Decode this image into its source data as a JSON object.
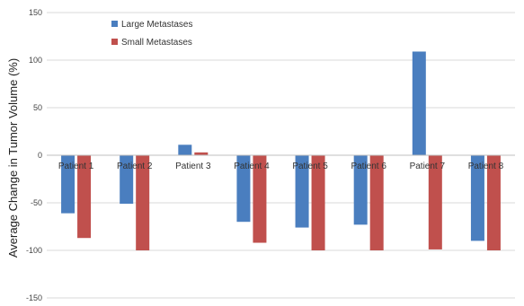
{
  "chart_data": {
    "type": "bar",
    "title": "",
    "xlabel": "",
    "ylabel": "Average Change in Tumor Volume (%)",
    "ylim": [
      -150,
      150
    ],
    "yticks": [
      -150,
      -100,
      -50,
      0,
      50,
      100,
      150
    ],
    "grid": true,
    "legend_position": "top-left",
    "categories": [
      "Patient 1",
      "Patient 2",
      "Patient 3",
      "Patient 4",
      "Patient 5",
      "Patient 6",
      "Patient 7",
      "Patient 8"
    ],
    "series": [
      {
        "name": "Large Metastases",
        "color": "#4a7ebf",
        "values": [
          -61,
          -51,
          11,
          -70,
          -76,
          -73,
          109,
          -90
        ]
      },
      {
        "name": "Small Metastases",
        "color": "#c0504d",
        "values": [
          -87,
          -100,
          3,
          -92,
          -100,
          -100,
          -99,
          -100
        ]
      }
    ]
  }
}
